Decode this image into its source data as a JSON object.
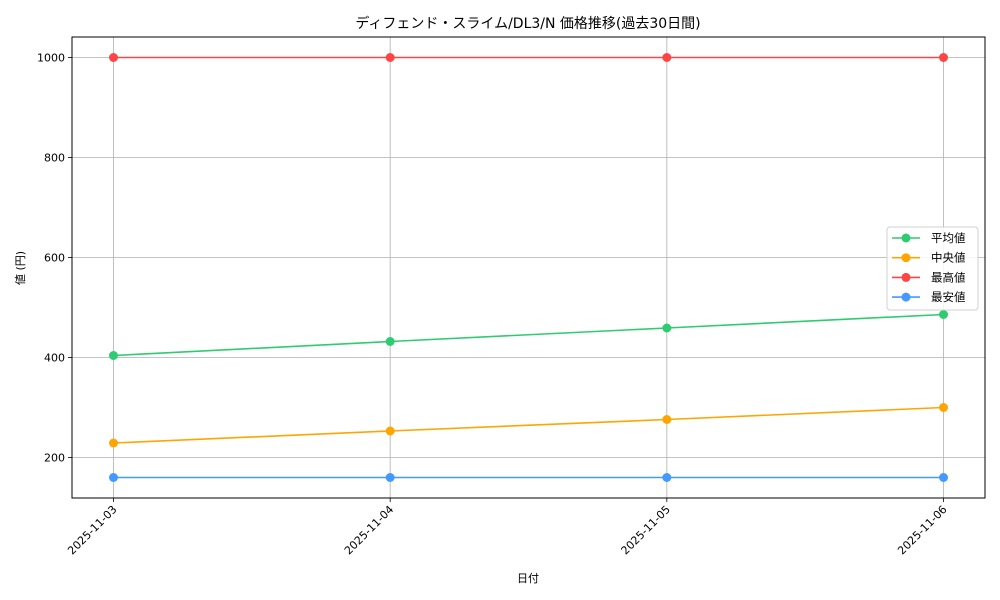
{
  "chart_data": {
    "type": "line",
    "title": "ディフェンド・スライム/DL3/N 価格推移(過去30日間)",
    "xlabel": "日付",
    "ylabel": "値 (円)",
    "categories": [
      "2025-11-03",
      "2025-11-04",
      "2025-11-05",
      "2025-11-06"
    ],
    "series": [
      {
        "name": "平均値",
        "color": "#2ecc71",
        "values": [
          404,
          432,
          459,
          486
        ]
      },
      {
        "name": "中央値",
        "color": "#ffa500",
        "values": [
          229,
          253,
          276,
          300
        ]
      },
      {
        "name": "最高値",
        "color": "#ff4444",
        "values": [
          1000,
          1000,
          1000,
          1000
        ]
      },
      {
        "name": "最安値",
        "color": "#4499ff",
        "values": [
          160,
          160,
          160,
          160
        ]
      }
    ],
    "yticks": [
      200,
      400,
      600,
      800,
      1000
    ],
    "ylim": [
      118,
      1042
    ],
    "grid": true,
    "legend_position": "center right",
    "marker": "circle"
  }
}
